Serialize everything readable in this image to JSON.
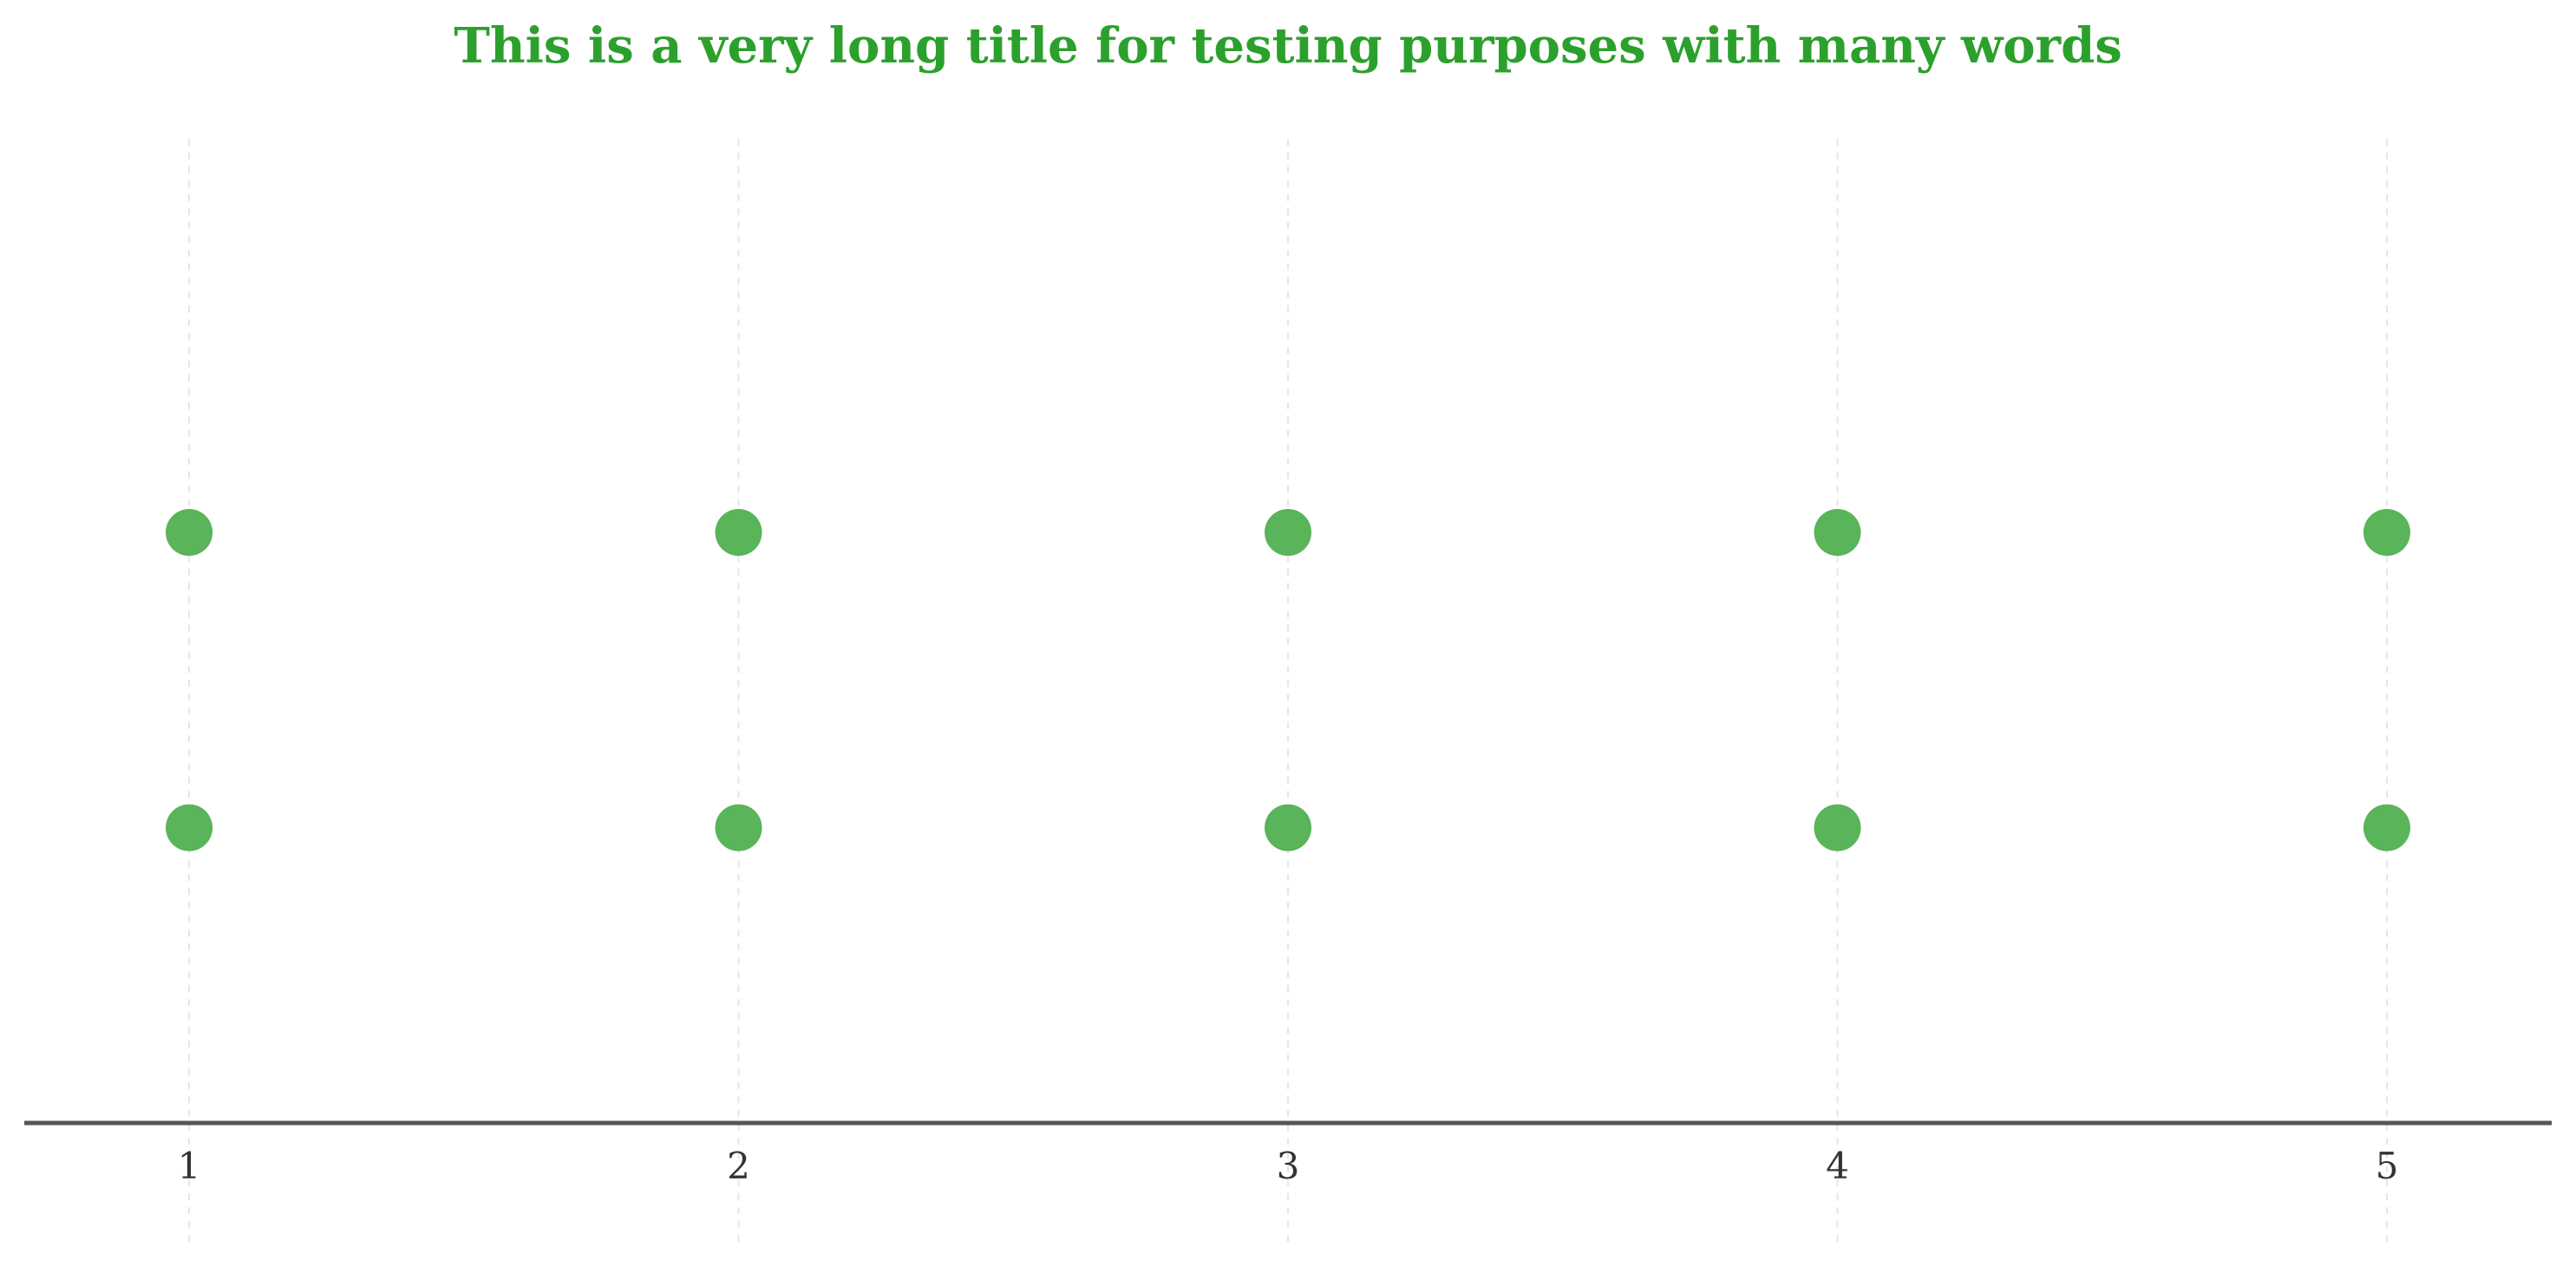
{
  "chart_data": {
    "type": "scatter",
    "title": "This is a very long title for testing purposes with many words",
    "xlabel": "",
    "ylabel": "",
    "x_ticks": [
      "1",
      "2",
      "3",
      "4",
      "5"
    ],
    "xlim": [
      0.7,
      5.3
    ],
    "ylim": [
      0,
      1
    ],
    "series": [
      {
        "x": [
          1,
          2,
          3,
          4,
          5
        ],
        "y": [
          0.6,
          0.6,
          0.6,
          0.6,
          0.6
        ]
      },
      {
        "x": [
          1,
          2,
          3,
          4,
          5
        ],
        "y": [
          0.3,
          0.3,
          0.3,
          0.3,
          0.3
        ]
      }
    ],
    "grid": "vertical dashed",
    "y_axis_visible": false,
    "legend": "none",
    "colors": {
      "title": "#2ca02c",
      "points": "#5ab45a",
      "axis": "#555555",
      "grid": "#e6e6e6",
      "tick_labels": "#333333"
    }
  }
}
